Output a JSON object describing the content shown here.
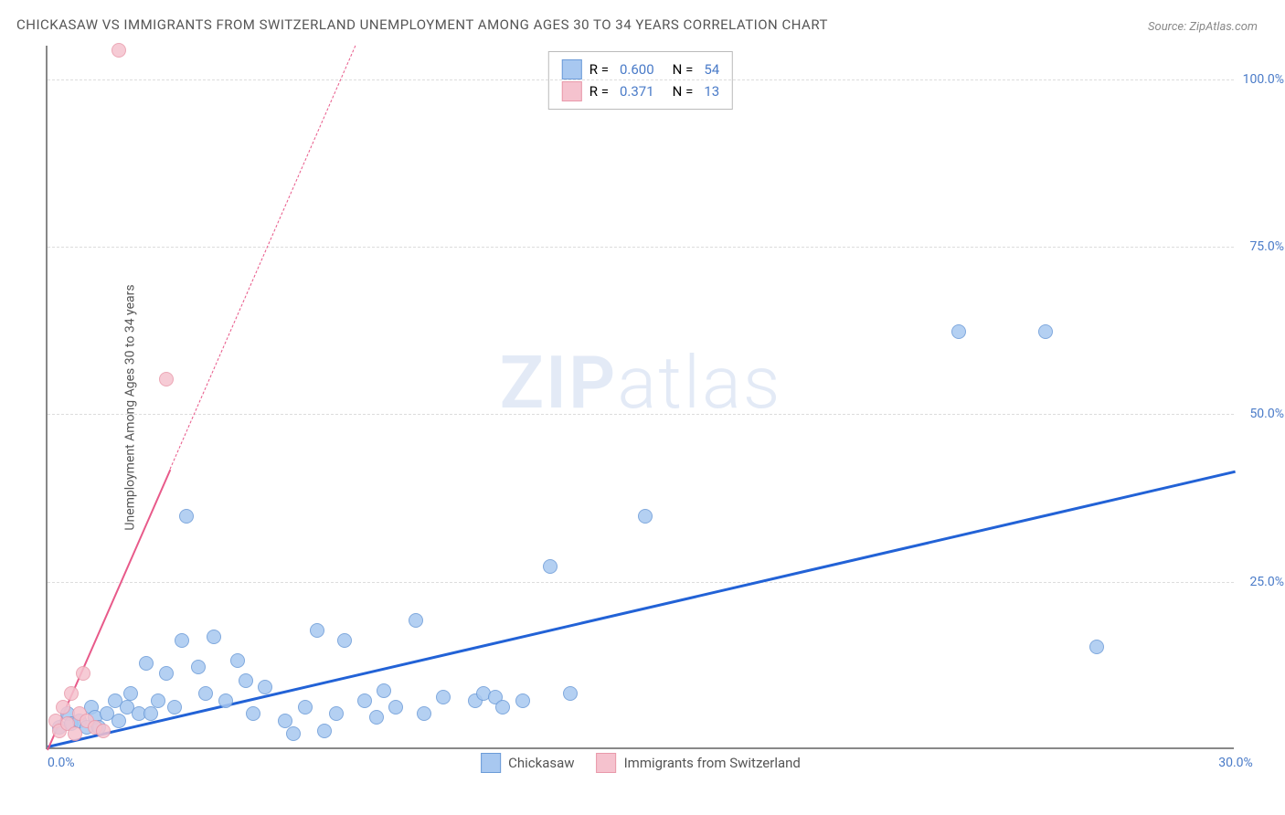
{
  "title": "CHICKASAW VS IMMIGRANTS FROM SWITZERLAND UNEMPLOYMENT AMONG AGES 30 TO 34 YEARS CORRELATION CHART",
  "source": "Source: ZipAtlas.com",
  "y_axis_label": "Unemployment Among Ages 30 to 34 years",
  "watermark_bold": "ZIP",
  "watermark_light": "atlas",
  "chart": {
    "type": "scatter",
    "xlim": [
      0,
      30
    ],
    "ylim": [
      0,
      105
    ],
    "x_ticks": [
      {
        "value": 0,
        "label": "0.0%"
      },
      {
        "value": 30,
        "label": "30.0%"
      }
    ],
    "y_ticks": [
      {
        "value": 25,
        "label": "25.0%"
      },
      {
        "value": 50,
        "label": "50.0%"
      },
      {
        "value": 75,
        "label": "75.0%"
      },
      {
        "value": 100,
        "label": "100.0%"
      }
    ],
    "grid_color": "#dddddd",
    "background_color": "#ffffff",
    "axis_color": "#888888",
    "series": [
      {
        "name": "Chickasaw",
        "color_fill": "#a8c8f0",
        "color_stroke": "#6b9bd8",
        "marker_radius": 8,
        "trend": {
          "slope": 1.37,
          "intercept": 0.5,
          "color": "#2262d6",
          "width": 2.5
        },
        "r": "0.600",
        "n": "54",
        "points": [
          [
            0.3,
            3
          ],
          [
            0.5,
            5
          ],
          [
            0.6,
            3.5
          ],
          [
            0.8,
            4
          ],
          [
            1.0,
            3
          ],
          [
            1.1,
            6
          ],
          [
            1.2,
            4.5
          ],
          [
            1.3,
            3
          ],
          [
            1.5,
            5
          ],
          [
            1.7,
            7
          ],
          [
            1.8,
            4
          ],
          [
            2.0,
            6
          ],
          [
            2.1,
            8
          ],
          [
            2.3,
            5
          ],
          [
            2.5,
            12.5
          ],
          [
            2.6,
            5
          ],
          [
            2.8,
            7
          ],
          [
            3.0,
            11
          ],
          [
            3.2,
            6
          ],
          [
            3.4,
            16
          ],
          [
            3.5,
            34.5
          ],
          [
            3.8,
            12
          ],
          [
            4.0,
            8
          ],
          [
            4.2,
            16.5
          ],
          [
            4.5,
            7
          ],
          [
            4.8,
            13
          ],
          [
            5.0,
            10
          ],
          [
            5.2,
            5
          ],
          [
            5.5,
            9
          ],
          [
            6.0,
            4
          ],
          [
            6.2,
            2
          ],
          [
            6.5,
            6
          ],
          [
            6.8,
            17.5
          ],
          [
            7.0,
            2.5
          ],
          [
            7.3,
            5
          ],
          [
            7.5,
            16
          ],
          [
            8.0,
            7
          ],
          [
            8.3,
            4.5
          ],
          [
            8.5,
            8.5
          ],
          [
            8.8,
            6
          ],
          [
            9.3,
            19
          ],
          [
            9.5,
            5
          ],
          [
            10.0,
            7.5
          ],
          [
            10.8,
            7
          ],
          [
            11.0,
            8
          ],
          [
            11.3,
            7.5
          ],
          [
            11.5,
            6
          ],
          [
            12.0,
            7
          ],
          [
            12.7,
            27
          ],
          [
            13.2,
            8
          ],
          [
            15.1,
            34.5
          ],
          [
            23.0,
            62
          ],
          [
            25.2,
            62
          ],
          [
            26.5,
            15
          ]
        ]
      },
      {
        "name": "Immigrants from Switzerland",
        "color_fill": "#f5c2ce",
        "color_stroke": "#e999aa",
        "marker_radius": 8,
        "trend": {
          "slope": 13.5,
          "intercept": 0,
          "color": "#e85a8a",
          "width": 2,
          "solid_until_x": 3.1
        },
        "r": "0.371",
        "n": "13",
        "points": [
          [
            0.2,
            4
          ],
          [
            0.3,
            2.5
          ],
          [
            0.4,
            6
          ],
          [
            0.5,
            3.5
          ],
          [
            0.6,
            8
          ],
          [
            0.7,
            2
          ],
          [
            0.8,
            5
          ],
          [
            0.9,
            11
          ],
          [
            1.0,
            4
          ],
          [
            1.2,
            3
          ],
          [
            1.4,
            2.5
          ],
          [
            1.8,
            104
          ],
          [
            3.0,
            55
          ]
        ]
      }
    ]
  },
  "legend_top": [
    {
      "swatch_fill": "#a8c8f0",
      "swatch_stroke": "#6b9bd8",
      "r_label": "R =",
      "r": "0.600",
      "n_label": "N =",
      "n": "54"
    },
    {
      "swatch_fill": "#f5c2ce",
      "swatch_stroke": "#e999aa",
      "r_label": "R =",
      "r": "0.371",
      "n_label": "N =",
      "n": "13"
    }
  ],
  "legend_bottom": [
    {
      "swatch_fill": "#a8c8f0",
      "swatch_stroke": "#6b9bd8",
      "label": "Chickasaw"
    },
    {
      "swatch_fill": "#f5c2ce",
      "swatch_stroke": "#e999aa",
      "label": "Immigrants from Switzerland"
    }
  ]
}
